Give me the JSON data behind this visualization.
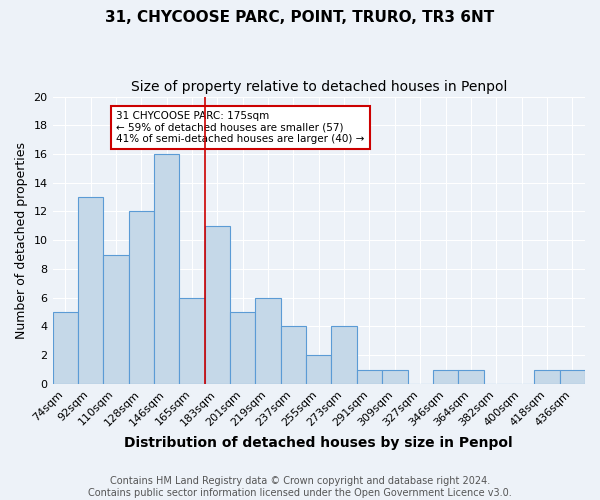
{
  "title": "31, CHYCOOSE PARC, POINT, TRURO, TR3 6NT",
  "subtitle": "Size of property relative to detached houses in Penpol",
  "xlabel": "Distribution of detached houses by size in Penpol",
  "ylabel": "Number of detached properties",
  "categories": [
    "74sqm",
    "92sqm",
    "110sqm",
    "128sqm",
    "146sqm",
    "165sqm",
    "183sqm",
    "201sqm",
    "219sqm",
    "237sqm",
    "255sqm",
    "273sqm",
    "291sqm",
    "309sqm",
    "327sqm",
    "346sqm",
    "364sqm",
    "382sqm",
    "400sqm",
    "418sqm",
    "436sqm"
  ],
  "values": [
    5,
    13,
    9,
    12,
    16,
    6,
    11,
    5,
    6,
    4,
    2,
    4,
    1,
    1,
    0,
    1,
    1,
    0,
    0,
    1,
    1
  ],
  "bar_color": "#c5d8e8",
  "bar_edge_color": "#5b9bd5",
  "vertical_line_color": "#cc0000",
  "ylim": [
    0,
    20
  ],
  "yticks": [
    0,
    2,
    4,
    6,
    8,
    10,
    12,
    14,
    16,
    18,
    20
  ],
  "annotation_text": "31 CHYCOOSE PARC: 175sqm\n← 59% of detached houses are smaller (57)\n41% of semi-detached houses are larger (40) →",
  "annotation_box_color": "#ffffff",
  "annotation_box_edgecolor": "#cc0000",
  "footer_line1": "Contains HM Land Registry data © Crown copyright and database right 2024.",
  "footer_line2": "Contains public sector information licensed under the Open Government Licence v3.0.",
  "background_color": "#edf2f8",
  "grid_color": "#ffffff",
  "title_fontsize": 11,
  "subtitle_fontsize": 10,
  "xlabel_fontsize": 10,
  "ylabel_fontsize": 9,
  "tick_fontsize": 8,
  "footer_fontsize": 7
}
